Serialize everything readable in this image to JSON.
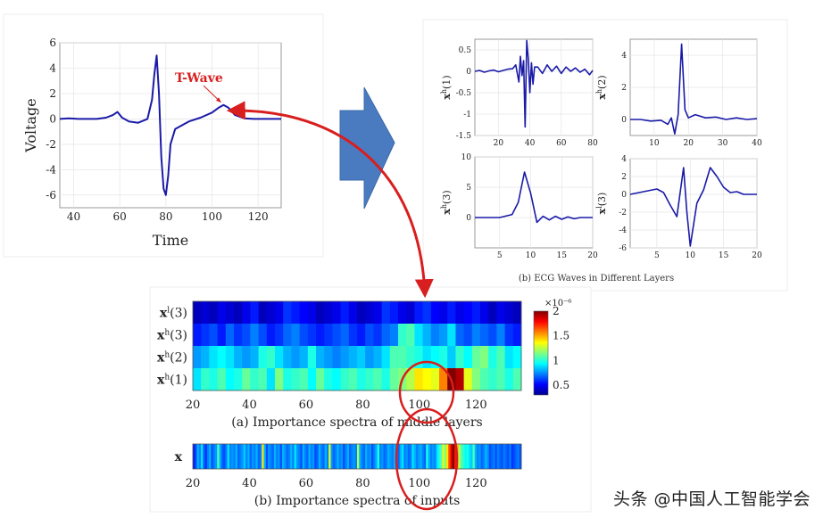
{
  "chart_data": [
    {
      "id": "ecg",
      "type": "line",
      "xlabel": "Time",
      "ylabel": "Voltage",
      "xlim": [
        34,
        130
      ],
      "ylim": [
        -7,
        6
      ],
      "xticks": [
        40,
        60,
        80,
        100,
        120
      ],
      "yticks": [
        -6,
        -4,
        -2,
        0,
        2,
        4,
        6
      ],
      "series": [
        {
          "x": [
            34,
            38,
            42,
            46,
            50,
            54,
            57,
            59,
            61,
            64,
            68,
            72,
            74,
            75,
            76,
            77,
            78,
            79,
            80,
            81,
            82,
            84,
            87,
            90,
            95,
            100,
            103,
            105,
            107,
            110,
            114,
            118,
            122,
            126,
            130
          ],
          "values": [
            0,
            0.05,
            0,
            0,
            0,
            0.1,
            0.3,
            0.55,
            0.1,
            -0.2,
            -0.3,
            0,
            1.5,
            3.5,
            5.0,
            2.0,
            -3.0,
            -5.5,
            -6.0,
            -4.5,
            -2.0,
            -0.8,
            -0.5,
            -0.2,
            0.1,
            0.5,
            0.9,
            1.1,
            0.9,
            0.3,
            0.05,
            0,
            0,
            0,
            0
          ]
        }
      ],
      "annotation": {
        "text": "T-Wave",
        "x": 105,
        "y": 1.1
      }
    },
    {
      "id": "xh1",
      "type": "line",
      "ylabel": [
        "x",
        "h",
        "(1)"
      ],
      "xlim": [
        5,
        80
      ],
      "ylim": [
        -1.5,
        0.75
      ],
      "xticks": [
        20,
        40,
        60,
        80
      ],
      "yticks": [
        -1.5,
        -1,
        -0.5,
        0,
        0.5
      ],
      "series": [
        {
          "x": [
            5,
            8,
            11,
            14,
            17,
            20,
            23,
            26,
            29,
            31,
            33,
            34,
            35,
            36,
            37,
            38,
            39,
            40,
            41,
            42,
            43,
            45,
            48,
            51,
            54,
            57,
            60,
            63,
            66,
            69,
            72,
            75,
            78,
            80
          ],
          "values": [
            0,
            0.02,
            -0.02,
            0.01,
            0.03,
            -0.01,
            0.02,
            0.05,
            0.06,
            0.15,
            -0.25,
            0.35,
            -0.1,
            0.25,
            -1.3,
            0.72,
            0.3,
            -0.5,
            0.2,
            -0.3,
            0.1,
            0.1,
            -0.05,
            0.15,
            0,
            0.12,
            -0.05,
            0.1,
            0,
            0.08,
            -0.02,
            0.05,
            -0.08,
            0.02
          ]
        }
      ]
    },
    {
      "id": "xh2",
      "type": "line",
      "ylabel": [
        "x",
        "h",
        "(2)"
      ],
      "xlim": [
        3,
        40
      ],
      "ylim": [
        -1,
        5
      ],
      "xticks": [
        10,
        20,
        30,
        40
      ],
      "yticks": [
        0,
        2,
        4
      ],
      "series": [
        {
          "x": [
            3,
            6,
            9,
            12,
            14,
            15,
            16,
            17,
            18,
            19,
            20,
            22,
            25,
            28,
            31,
            34,
            37,
            40
          ],
          "values": [
            0,
            0,
            -0.1,
            -0.05,
            -0.3,
            0.1,
            -0.9,
            0.3,
            4.7,
            0.6,
            0.1,
            0.3,
            0.1,
            0.15,
            0,
            0.1,
            0,
            0.05
          ]
        }
      ]
    },
    {
      "id": "xh3",
      "type": "line",
      "ylabel": [
        "x",
        "h",
        "(3)"
      ],
      "xlim": [
        1,
        20
      ],
      "ylim": [
        -5,
        10
      ],
      "xticks": [
        5,
        10,
        15,
        20
      ],
      "yticks": [
        0,
        5,
        10
      ],
      "series": [
        {
          "x": [
            1,
            3,
            5,
            7,
            8,
            9,
            10,
            11,
            12,
            13,
            14,
            15,
            16,
            17,
            18,
            20
          ],
          "values": [
            0,
            0,
            0,
            0.5,
            2.5,
            7.5,
            4,
            -0.8,
            0.2,
            -0.4,
            0.2,
            -0.3,
            0.1,
            -0.2,
            0,
            0
          ]
        }
      ]
    },
    {
      "id": "xl3",
      "type": "line",
      "ylabel": [
        "x",
        "l",
        "(3)"
      ],
      "xlim": [
        1,
        20
      ],
      "ylim": [
        -6,
        4
      ],
      "xticks": [
        5,
        10,
        15,
        20
      ],
      "yticks": [
        -6,
        -4,
        -2,
        0,
        2,
        4
      ],
      "series": [
        {
          "x": [
            1,
            3,
            5,
            6,
            7,
            8,
            9,
            9.5,
            10,
            11,
            12,
            13,
            14,
            15,
            16,
            17,
            18,
            20
          ],
          "values": [
            0,
            0.3,
            0.6,
            0.2,
            -1.2,
            -2.5,
            3,
            -2,
            -5.8,
            -1,
            0.5,
            3,
            2,
            0.8,
            0.2,
            0.3,
            0,
            0
          ]
        }
      ]
    },
    {
      "id": "heat_middle",
      "type": "heatmap",
      "rows": [
        "x^l(3)",
        "x^h(3)",
        "x^h(2)",
        "x^h(1)"
      ],
      "xlim": [
        20,
        136
      ],
      "xticks": [
        20,
        40,
        60,
        80,
        100,
        120
      ],
      "caption": "(a)  Importance spectra of middle layers",
      "colorbar": {
        "ticks": [
          0.5,
          1,
          1.5,
          2
        ],
        "exponent": "×10⁻⁶",
        "range": [
          0.3,
          2
        ]
      },
      "values": [
        [
          0.1,
          0.15,
          0.1,
          0.2,
          0.15,
          0.1,
          0.2,
          0.3,
          0.1,
          0.15,
          0.2,
          0.35,
          0.3,
          0.25,
          0.2,
          0.1,
          0.15,
          0.2,
          0.3,
          0.2,
          0.1,
          0.15,
          0.2,
          0.35,
          0.3,
          0.2,
          0.15,
          0.3,
          0.35,
          0.25,
          0.2,
          0.3,
          0.2,
          0.25,
          0.3,
          0.2,
          0.1,
          0.2,
          0.15,
          0.1
        ],
        [
          0.3,
          0.35,
          0.4,
          0.3,
          0.45,
          0.35,
          0.4,
          0.5,
          0.4,
          0.3,
          0.35,
          0.45,
          0.5,
          0.4,
          0.35,
          0.3,
          0.35,
          0.4,
          0.45,
          0.35,
          0.3,
          0.4,
          0.35,
          0.45,
          0.5,
          0.85,
          0.9,
          0.7,
          0.6,
          0.5,
          0.55,
          0.7,
          0.45,
          0.4,
          0.5,
          0.45,
          0.4,
          0.5,
          0.35,
          0.3
        ],
        [
          0.55,
          0.6,
          0.7,
          0.75,
          0.7,
          0.6,
          0.55,
          0.6,
          0.8,
          0.85,
          0.7,
          0.6,
          0.55,
          0.6,
          0.8,
          0.6,
          0.55,
          0.5,
          0.55,
          0.6,
          0.65,
          0.55,
          0.6,
          0.7,
          0.9,
          0.9,
          0.85,
          0.8,
          0.7,
          0.75,
          0.8,
          0.65,
          0.85,
          0.75,
          0.95,
          1.0,
          0.8,
          0.9,
          0.7,
          0.75
        ],
        [
          0.7,
          0.85,
          0.8,
          0.9,
          0.75,
          0.8,
          0.95,
          0.85,
          0.9,
          0.7,
          1.0,
          0.8,
          0.85,
          0.9,
          0.75,
          0.95,
          0.8,
          0.75,
          0.85,
          0.9,
          0.8,
          0.85,
          0.9,
          0.8,
          0.95,
          1.0,
          1.1,
          1.3,
          1.25,
          1.2,
          1.5,
          2.0,
          1.9,
          1.2,
          1.0,
          0.9,
          0.85,
          0.9,
          0.8,
          0.9
        ]
      ]
    },
    {
      "id": "heat_input",
      "type": "heatmap",
      "rows": [
        "x"
      ],
      "xlim": [
        20,
        136
      ],
      "xticks": [
        20,
        40,
        60,
        80,
        100,
        120
      ],
      "caption": "(b) Importance spectra of inputs",
      "values": [
        [
          0.3,
          0.4,
          0.6,
          0.5,
          0.7,
          0.45,
          0.35,
          0.5,
          0.6,
          0.4,
          0.5,
          0.55,
          0.9,
          0.6,
          0.45,
          0.4,
          0.5,
          0.7,
          0.5,
          0.55,
          0.5,
          0.6,
          0.45,
          0.5,
          0.55,
          0.65,
          0.5,
          0.6,
          0.45,
          0.55,
          0.5,
          0.6,
          0.45,
          0.5,
          1.3,
          0.6,
          0.4,
          0.55,
          0.5,
          0.45,
          0.6,
          0.5,
          0.55,
          0.4,
          0.6,
          0.55,
          0.45,
          0.5,
          0.6,
          0.5,
          0.7,
          0.55,
          0.5,
          0.4,
          0.6,
          0.5,
          0.45,
          0.6,
          0.5,
          0.55,
          0.4,
          0.45,
          0.6,
          0.5,
          0.45,
          0.6,
          0.5,
          1.2,
          0.55,
          0.45,
          0.5,
          0.6,
          0.5,
          0.55,
          0.4,
          0.5,
          0.6,
          0.45,
          0.5,
          0.55,
          0.5,
          1.1,
          0.6,
          0.5,
          0.45,
          0.6,
          0.5,
          0.55,
          0.4,
          0.5,
          0.6,
          0.8,
          0.5,
          0.55,
          0.45,
          0.5,
          0.6,
          0.55,
          0.5,
          0.6,
          0.5,
          0.45,
          0.6,
          0.7,
          0.5,
          0.55,
          0.45,
          0.5,
          0.7,
          0.6,
          0.5,
          0.55,
          0.6,
          0.5,
          0.45,
          0.8,
          0.6,
          0.5,
          0.55,
          0.5,
          0.7,
          0.8,
          0.9,
          1.2,
          1.0,
          1.3,
          1.6,
          1.8,
          2.0,
          1.7,
          1.4,
          1.1,
          0.9,
          0.85,
          0.75,
          0.8,
          0.7,
          0.65,
          0.9,
          0.6,
          0.5,
          0.55,
          0.45,
          0.5,
          0.6,
          0.55,
          0.4,
          0.45,
          0.5,
          0.4,
          0.5,
          0.45,
          0.4,
          0.5,
          0.45,
          0.4,
          0.5,
          0.35,
          0.4,
          0.45,
          0.5,
          0.4
        ]
      ]
    }
  ],
  "captions": {
    "ecg_waves": "(b)  ECG Waves in Different Layers"
  },
  "watermark": "头条 @中国人工智能学会",
  "colors": {
    "line": "#1a1aa8",
    "annotation": "#d81e1e",
    "arrow": "#4a7bc0"
  }
}
